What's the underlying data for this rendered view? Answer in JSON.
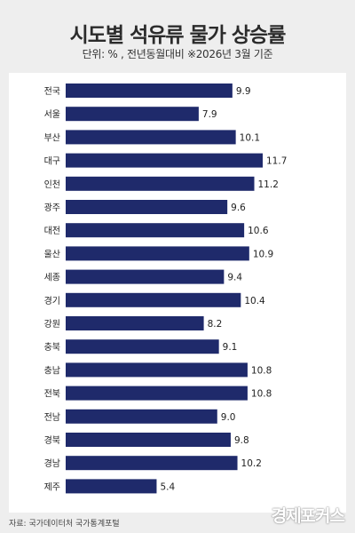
{
  "header": {
    "title": "시도별 석유류 물가 상승률",
    "subtitle": "단위: % , 전년동월대비 ※2026년 3월 기준"
  },
  "footer": {
    "source": "자료: 국가데이터처 국가통계포털",
    "logo": "경제포커스"
  },
  "colors": {
    "bar": "#1f2a6b",
    "label": "#222222"
  },
  "chart_data": {
    "type": "bar",
    "orientation": "horizontal",
    "categories": [
      "전국",
      "서울",
      "부산",
      "대구",
      "인천",
      "광주",
      "대전",
      "울산",
      "세종",
      "경기",
      "강원",
      "충북",
      "충남",
      "전북",
      "전남",
      "경북",
      "경남",
      "제주"
    ],
    "values": [
      9.9,
      7.9,
      10.1,
      11.7,
      11.2,
      9.6,
      10.6,
      10.9,
      9.4,
      10.4,
      8.2,
      9.1,
      10.8,
      10.8,
      9.0,
      9.8,
      10.2,
      5.4
    ],
    "value_labels": [
      "9.9",
      "7.9",
      "10.1",
      "11.7",
      "11.2",
      "9.6",
      "10.6",
      "10.9",
      "9.4",
      "10.4",
      "8.2",
      "9.1",
      "10.8",
      "10.8",
      "9.0",
      "9.8",
      "10.2",
      "5.4"
    ],
    "xlim": [
      0,
      11.7
    ],
    "grid": false,
    "legend": "none"
  }
}
